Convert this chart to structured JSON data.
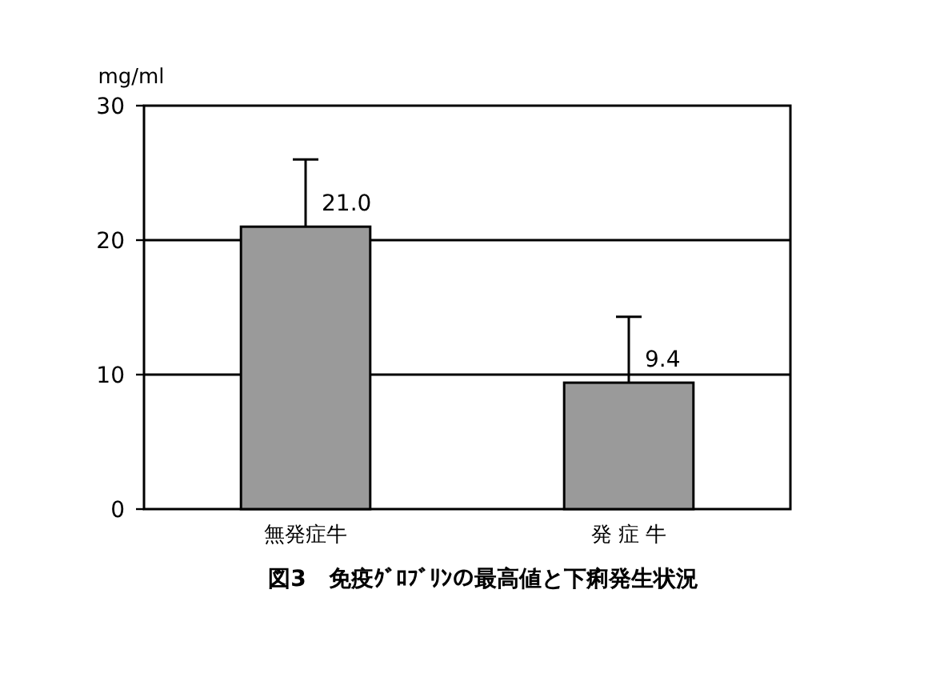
{
  "chart_data": {
    "type": "bar",
    "title": "図3　免疫ｸﾞﾛﾌﾞﾘﾝの最高値と下痢発生状況",
    "ylabel": "mg/ml",
    "categories": [
      "無発症牛",
      "発 症 牛"
    ],
    "values": [
      21.0,
      9.4
    ],
    "errors": [
      [
        21.0,
        26.0
      ],
      [
        9.4,
        14.3
      ]
    ],
    "value_labels": [
      "21.0",
      "9.4"
    ],
    "color": "#9a9a9a",
    "ylim": [
      0,
      30
    ],
    "yticks": [
      0,
      10,
      20,
      30
    ],
    "grid": "y"
  }
}
